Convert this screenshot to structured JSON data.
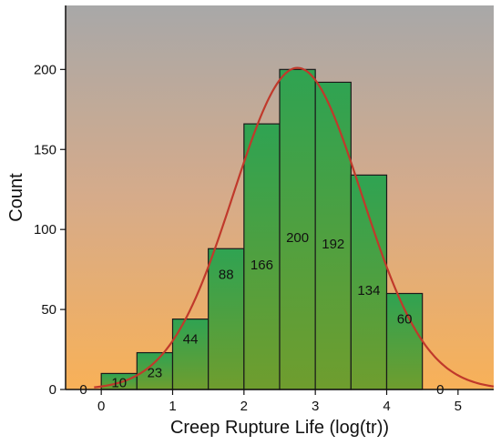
{
  "chart_data": {
    "type": "bar",
    "title": "",
    "xlabel": "Creep Rupture Life (log(tr))",
    "ylabel": "Count",
    "xlim": [
      -0.5,
      5.5
    ],
    "ylim": [
      0,
      240
    ],
    "xticks": [
      0,
      1,
      2,
      3,
      4,
      5
    ],
    "yticks": [
      0,
      50,
      100,
      150,
      200
    ],
    "bin_width": 0.5,
    "bins": [
      {
        "x": -0.25,
        "value": 0
      },
      {
        "x": 0.25,
        "value": 10
      },
      {
        "x": 0.75,
        "value": 23
      },
      {
        "x": 1.25,
        "value": 44
      },
      {
        "x": 1.75,
        "value": 88
      },
      {
        "x": 2.25,
        "value": 166
      },
      {
        "x": 2.75,
        "value": 200
      },
      {
        "x": 3.25,
        "value": 192
      },
      {
        "x": 3.75,
        "value": 134
      },
      {
        "x": 4.25,
        "value": 60
      },
      {
        "x": 4.75,
        "value": 0
      }
    ],
    "fit_curve": {
      "type": "normal",
      "mean": 2.75,
      "sd": 0.9,
      "peak": 201
    },
    "grid": false,
    "colors": {
      "bar_fill": "#5a9e3a",
      "bar_stroke": "#1a1a1a",
      "curve": "#c0392b",
      "bg_top": "#a9a9a9",
      "bg_bottom": "#f7b15a"
    }
  }
}
